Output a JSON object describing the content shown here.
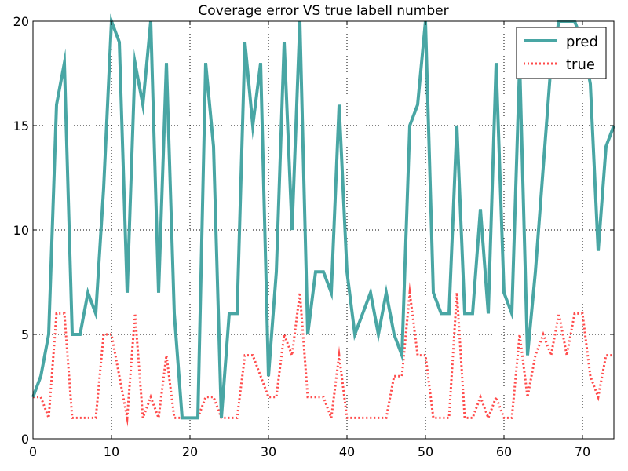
{
  "chart_data": {
    "type": "line",
    "title": "Coverage error VS true labell number",
    "xlabel": "",
    "ylabel": "",
    "xlim": [
      0,
      74
    ],
    "ylim": [
      0,
      20
    ],
    "xticks": [
      0,
      10,
      20,
      30,
      40,
      50,
      60,
      70
    ],
    "yticks": [
      0,
      5,
      10,
      15,
      20
    ],
    "grid": true,
    "legend_position": "top-right",
    "x": [
      0,
      1,
      2,
      3,
      4,
      5,
      6,
      7,
      8,
      9,
      10,
      11,
      12,
      13,
      14,
      15,
      16,
      17,
      18,
      19,
      20,
      21,
      22,
      23,
      24,
      25,
      26,
      27,
      28,
      29,
      30,
      31,
      32,
      33,
      34,
      35,
      36,
      37,
      38,
      39,
      40,
      41,
      42,
      43,
      44,
      45,
      46,
      47,
      48,
      49,
      50,
      51,
      52,
      53,
      54,
      55,
      56,
      57,
      58,
      59,
      60,
      61,
      62,
      63,
      64,
      65,
      66,
      67,
      68,
      69,
      70,
      71,
      72,
      73,
      74
    ],
    "series": [
      {
        "name": "pred",
        "color": "#49a6a4",
        "style": "solid",
        "values": [
          2,
          3,
          5,
          16,
          18,
          5,
          5,
          7,
          6,
          12,
          20,
          19,
          7,
          18,
          16,
          20,
          7,
          18,
          6,
          1,
          1,
          1,
          18,
          14,
          1,
          6,
          6,
          19,
          15,
          18,
          3,
          8,
          19,
          10,
          20,
          5,
          8,
          8,
          7,
          16,
          8,
          5,
          6,
          7,
          5,
          7,
          5,
          4,
          15,
          16,
          20,
          7,
          6,
          6,
          15,
          6,
          6,
          11,
          6,
          18,
          7,
          6,
          18,
          4,
          8,
          13,
          18,
          20,
          20,
          20,
          19,
          17,
          9,
          14,
          15
        ]
      },
      {
        "name": "true",
        "color": "#ff4b4b",
        "style": "dotted",
        "values": [
          2,
          2,
          1,
          6,
          6,
          1,
          1,
          1,
          1,
          5,
          5,
          3,
          1,
          6,
          1,
          2,
          1,
          4,
          1,
          1,
          1,
          1,
          2,
          2,
          1,
          1,
          1,
          4,
          4,
          3,
          2,
          2,
          5,
          4,
          7,
          2,
          2,
          2,
          1,
          4,
          1,
          1,
          1,
          1,
          1,
          1,
          3,
          3,
          7,
          4,
          4,
          1,
          1,
          1,
          7,
          1,
          1,
          2,
          1,
          2,
          1,
          1,
          5,
          2,
          4,
          5,
          4,
          6,
          4,
          6,
          6,
          3,
          2,
          4,
          4
        ]
      }
    ]
  }
}
